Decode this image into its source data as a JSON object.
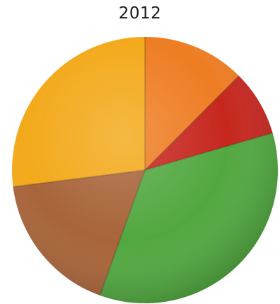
{
  "chart_data": {
    "type": "pie",
    "title": "2012",
    "slices": [
      {
        "value": 12.5,
        "color": "#EE7D23"
      },
      {
        "value": 8.0,
        "color": "#C6271F"
      },
      {
        "value": 35.0,
        "color": "#52A840"
      },
      {
        "value": 17.5,
        "color": "#A8643A"
      },
      {
        "value": 27.0,
        "color": "#F3A91A"
      }
    ],
    "start_angle_deg": 0,
    "direction": "clockwise"
  }
}
